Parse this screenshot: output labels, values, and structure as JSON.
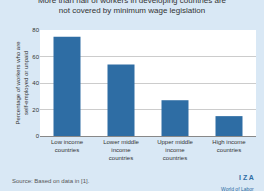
{
  "chart_data": {
    "type": "bar",
    "title": "More than half of workers in developing countries are\nnot covered by minimum wage legislation",
    "categories": [
      "Low income\ncountries",
      "Lower middle\nincome\ncountries",
      "Upper middle\nincome\ncountries",
      "High income\ncountries"
    ],
    "values": [
      75,
      54,
      27,
      15
    ],
    "color": "#2e6da4",
    "ylabel": "Percentage of workers who are\nself-employed or unpaid",
    "ylim": [
      0,
      80
    ],
    "yticks": [
      0,
      20,
      40,
      60,
      80
    ],
    "grid": true,
    "annotations": [
      "Source: Based on data in [1].",
      "I Z A",
      "World of Labor"
    ]
  }
}
